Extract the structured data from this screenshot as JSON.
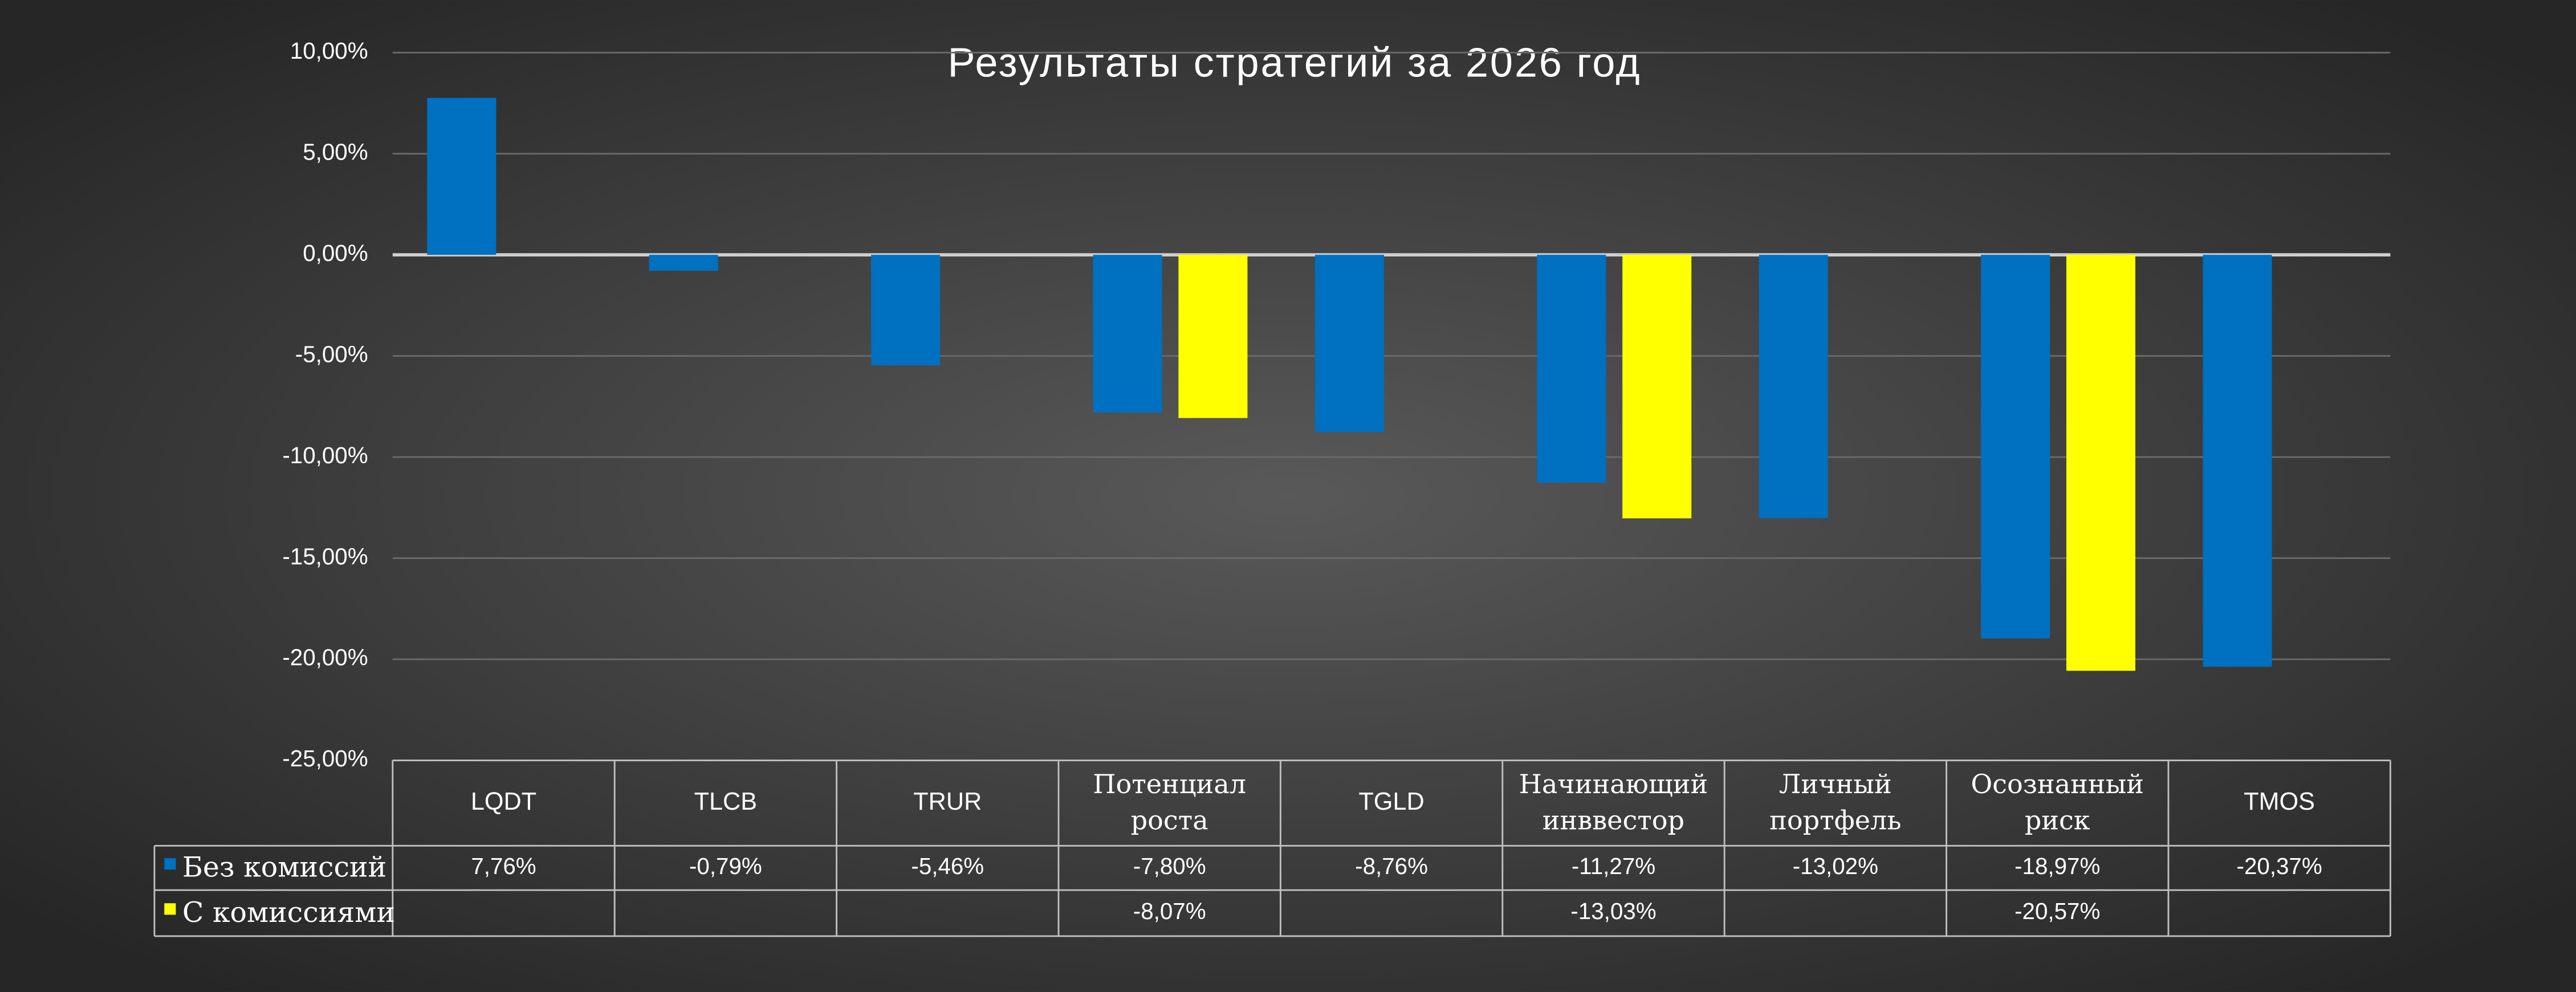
{
  "chart_data": {
    "type": "bar",
    "title": "Результаты стратегий за 2026 год",
    "categories": [
      "LQDT",
      "TLCB",
      "TRUR",
      "Потенциал роста",
      "TGLD",
      "Начинающий инввестор",
      "Личный портфель",
      "Осознанный риск",
      "TMOS"
    ],
    "series": [
      {
        "name": "Без комиссий",
        "color": "#0070c0",
        "values": [
          7.76,
          -0.79,
          -5.46,
          -7.8,
          -8.76,
          -11.27,
          -13.02,
          -18.97,
          -20.37
        ],
        "value_labels": [
          "7,76%",
          "-0,79%",
          "-5,46%",
          "-7,80%",
          "-8,76%",
          "-11,27%",
          "-13,02%",
          "-18,97%",
          "-20,37%"
        ]
      },
      {
        "name": "С комиссиями",
        "color": "#ffff00",
        "values": [
          null,
          null,
          null,
          -8.07,
          null,
          -13.03,
          null,
          -20.57,
          null
        ],
        "value_labels": [
          null,
          null,
          null,
          "-8,07%",
          null,
          "-13,03%",
          null,
          "-20,57%",
          null
        ]
      }
    ],
    "ylim": [
      -25,
      10
    ],
    "yticks": [
      {
        "value": -25,
        "label": "-25,00%"
      },
      {
        "value": -20,
        "label": "-20,00%"
      },
      {
        "value": -15,
        "label": "-15,00%"
      },
      {
        "value": -10,
        "label": "-10,00%"
      },
      {
        "value": -5,
        "label": "-5,00%"
      },
      {
        "value": 0,
        "label": "0,00%"
      },
      {
        "value": 5,
        "label": "5,00%"
      },
      {
        "value": 10,
        "label": "10,00%"
      }
    ],
    "grid": true
  }
}
